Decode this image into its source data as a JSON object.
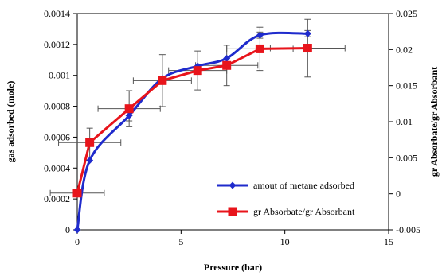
{
  "chart_data": {
    "type": "line",
    "xlabel": "Pressure (bar)",
    "ylabel": "gas adsorbed (mole)",
    "y2label": "gr Absorbate/gr Absorbant",
    "xlim": [
      0,
      15
    ],
    "ylim": [
      0,
      0.0014
    ],
    "y2lim": [
      -0.005,
      0.025
    ],
    "x_ticks": [
      0,
      5,
      10,
      15
    ],
    "x_tick_labels": [
      "0",
      "5",
      "10",
      "15"
    ],
    "y_ticks": [
      0,
      0.0002,
      0.0004,
      0.0006,
      0.0008,
      0.001,
      0.0012,
      0.0014
    ],
    "y_tick_labels": [
      "0",
      "0.0002",
      "0.0004",
      "0.0006",
      "0.0008",
      "0.001",
      "0.0012",
      "0.0014"
    ],
    "y2_ticks": [
      -0.005,
      0,
      0.005,
      0.01,
      0.015,
      0.02,
      0.025
    ],
    "y2_tick_labels": [
      "-0.005",
      "0",
      "0.005",
      "0.01",
      "0.015",
      "0.02",
      "0.025"
    ],
    "grid": false,
    "legend_position": "center-right",
    "series": [
      {
        "name": "amout of metane adsorbed",
        "axis": "left",
        "color": "#1f2bcc",
        "marker": "diamond",
        "smooth": true,
        "x": [
          0,
          0.6,
          2.5,
          4.1,
          5.8,
          7.2,
          8.8,
          11.1
        ],
        "y": [
          0,
          0.00045,
          0.00074,
          0.00098,
          0.00106,
          0.00111,
          0.00126,
          0.00127
        ],
        "y_err": [
          0,
          0,
          3.5e-05,
          0,
          0,
          0,
          2e-05,
          2e-05
        ]
      },
      {
        "name": "gr Absorbate/gr Absorbant",
        "axis": "right",
        "color": "#e8141b",
        "marker": "square",
        "smooth": false,
        "x": [
          0,
          0.6,
          2.5,
          4.1,
          5.8,
          7.2,
          8.8,
          11.1
        ],
        "y": [
          0.0001,
          0.0071,
          0.0118,
          0.0157,
          0.0171,
          0.0178,
          0.0201,
          0.0202
        ],
        "y_err": [
          0,
          0.002,
          0.0025,
          0.0036,
          0.0027,
          0.0028,
          0.003,
          0.004
        ],
        "x_err": [
          1.3,
          1.5,
          1.5,
          1.4,
          1.4,
          1.5,
          1.6,
          1.8
        ]
      }
    ]
  }
}
